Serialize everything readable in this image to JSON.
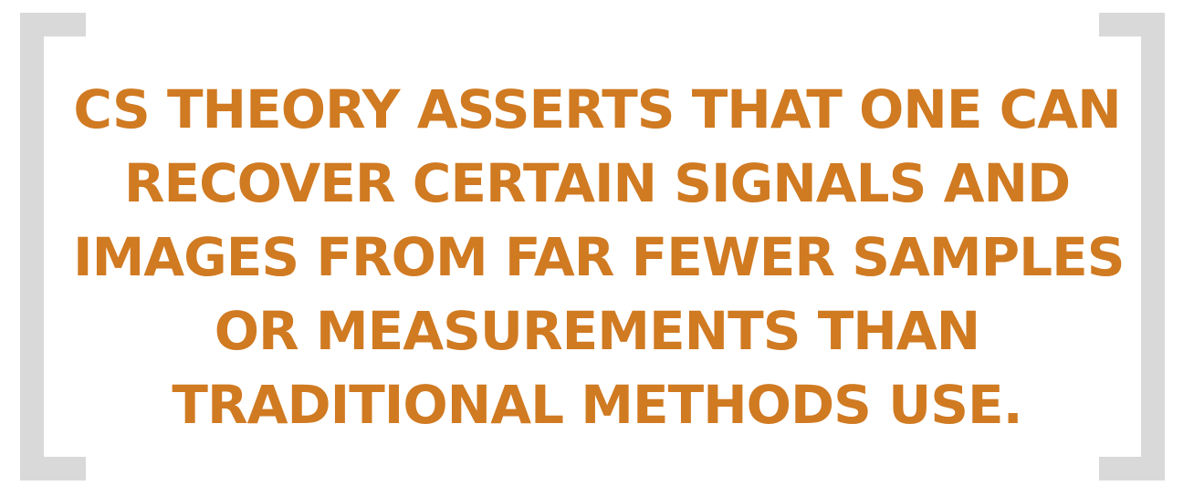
{
  "pull_quote": {
    "lines": [
      "CS THEORY ASSERTS THAT ONE CAN",
      "RECOVER CERTAIN SIGNALS AND",
      "IMAGES FROM FAR FEWER SAMPLES",
      "OR MEASUREMENTS THAN",
      "TRADITIONAL METHODS USE."
    ]
  },
  "colors": {
    "text": "#d07a22",
    "bracket": "#d9d9da",
    "background": "#ffffff"
  }
}
